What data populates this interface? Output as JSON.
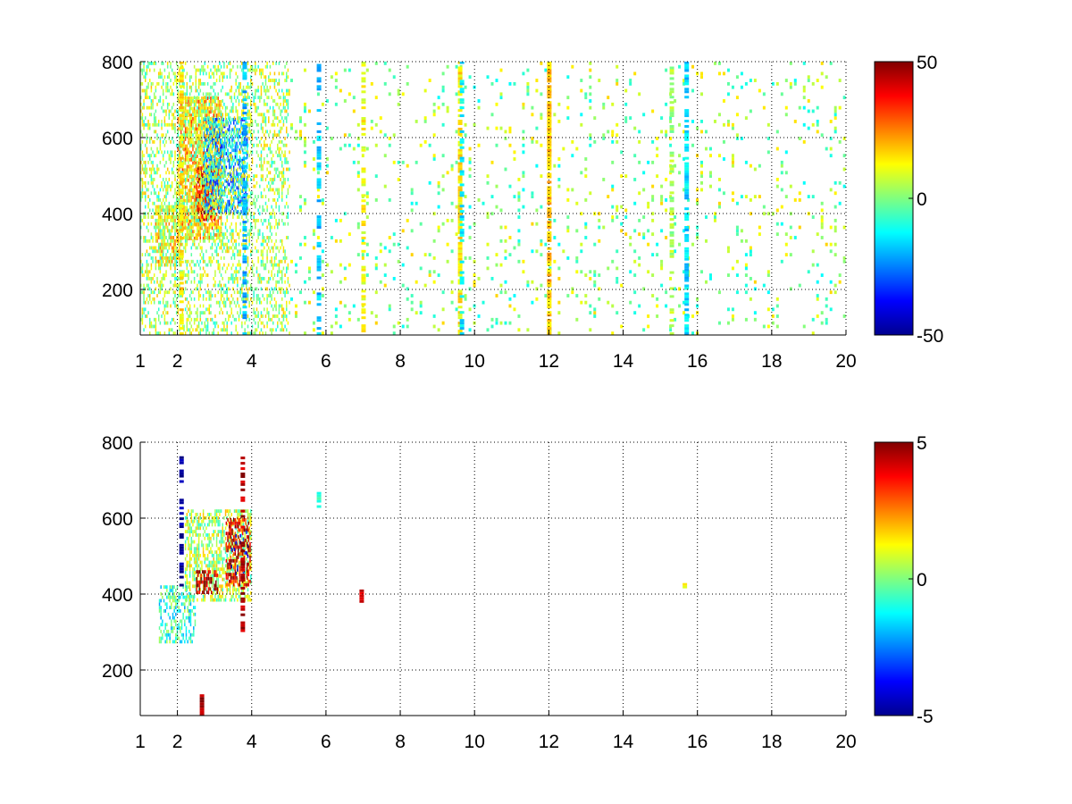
{
  "figure": {
    "background": "#ffffff",
    "colormap": "jet",
    "grid_color": "#000000"
  },
  "chart_data": [
    {
      "type": "heatmap",
      "title": "",
      "xlabel": "",
      "ylabel": "",
      "xlim": [
        1,
        20
      ],
      "ylim": [
        80,
        800
      ],
      "xticks": [
        1,
        2,
        4,
        6,
        8,
        10,
        12,
        14,
        16,
        18,
        20
      ],
      "yticks": [
        200,
        400,
        600,
        800
      ],
      "grid": true,
      "colorbar": {
        "clim": [
          -50,
          50
        ],
        "ticks": [
          -50,
          0,
          50
        ],
        "placement": "right"
      },
      "features": [
        {
          "x_range": [
            1.4,
            2.1
          ],
          "y_range": [
            260,
            420
          ],
          "value": 12,
          "density": 0.7
        },
        {
          "x_range": [
            2.0,
            3.2
          ],
          "y_range": [
            330,
            700
          ],
          "value": 18,
          "density": 0.75
        },
        {
          "x_range": [
            2.5,
            3.0
          ],
          "y_range": [
            380,
            520
          ],
          "value": 35,
          "density": 0.7
        },
        {
          "x_range": [
            2.7,
            3.9
          ],
          "y_range": [
            400,
            650
          ],
          "value": -22,
          "density": 0.6
        },
        {
          "x_range": [
            1.0,
            5.0
          ],
          "y_range": [
            80,
            800
          ],
          "value": 4,
          "density": 0.35
        },
        {
          "x_range": [
            5.0,
            20.0
          ],
          "y_range": [
            80,
            800
          ],
          "value": 2,
          "density": 0.12
        }
      ],
      "stripes": [
        {
          "x": 2.1,
          "value": 15,
          "density": 0.6
        },
        {
          "x": 3.8,
          "value": -20,
          "density": 0.5
        },
        {
          "x": 5.8,
          "value": -18,
          "density": 0.4
        },
        {
          "x": 7.0,
          "value": 12,
          "density": 0.5
        },
        {
          "x": 9.6,
          "value": 14,
          "density": 0.75
        },
        {
          "x": 9.65,
          "value": -14,
          "density": 0.4
        },
        {
          "x": 12.0,
          "value": 18,
          "density": 0.85
        },
        {
          "x": 15.3,
          "value": 4,
          "density": 0.5
        },
        {
          "x": 15.7,
          "value": -16,
          "density": 0.75
        }
      ]
    },
    {
      "type": "heatmap",
      "title": "",
      "xlabel": "",
      "ylabel": "",
      "xlim": [
        1,
        20
      ],
      "ylim": [
        80,
        800
      ],
      "xticks": [
        1,
        2,
        4,
        6,
        8,
        10,
        12,
        14,
        16,
        18,
        20
      ],
      "yticks": [
        200,
        400,
        600,
        800
      ],
      "grid": true,
      "colorbar": {
        "clim": [
          -5,
          5
        ],
        "ticks": [
          -5,
          0,
          5
        ],
        "placement": "right"
      },
      "features": [
        {
          "x_range": [
            1.5,
            2.5
          ],
          "y_range": [
            270,
            420
          ],
          "value": -0.8,
          "density": 0.45
        },
        {
          "x_range": [
            2.2,
            4.0
          ],
          "y_range": [
            380,
            620
          ],
          "value": 0.5,
          "density": 0.55
        },
        {
          "x_range": [
            2.5,
            3.1
          ],
          "y_range": [
            400,
            460
          ],
          "value": 4.5,
          "density": 0.55
        },
        {
          "x_range": [
            3.3,
            3.95
          ],
          "y_range": [
            420,
            600
          ],
          "value": 4.0,
          "density": 0.55
        },
        {
          "x_range": [
            3.4,
            3.9
          ],
          "y_range": [
            450,
            560
          ],
          "value": -4.0,
          "density": 0.15
        }
      ],
      "stripes": [
        {
          "x": 2.1,
          "y_range": [
            420,
            760
          ],
          "value": -4.8,
          "density": 0.5
        },
        {
          "x": 2.65,
          "y_range": [
            80,
            130
          ],
          "value": 4.5,
          "density": 0.9
        },
        {
          "x": 3.75,
          "y_range": [
            300,
            760
          ],
          "value": 4.5,
          "density": 0.6
        },
        {
          "x": 5.8,
          "y_range": [
            620,
            670
          ],
          "value": -0.5,
          "density": 0.6
        },
        {
          "x": 6.95,
          "y_range": [
            370,
            410
          ],
          "value": 4.0,
          "density": 0.8
        },
        {
          "x": 15.65,
          "y_range": [
            415,
            425
          ],
          "value": 1.0,
          "density": 0.8
        }
      ]
    }
  ]
}
